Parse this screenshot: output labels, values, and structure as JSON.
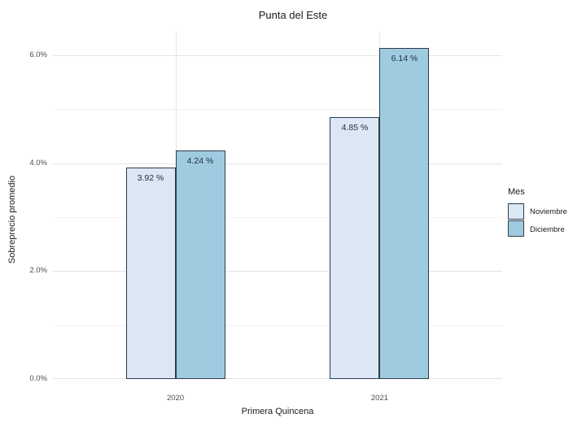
{
  "chart_data": {
    "type": "bar",
    "title": "Punta del Este",
    "xlabel": "Primera Quincena",
    "ylabel": "Sobreprecio promedio",
    "categories": [
      "2020",
      "2021"
    ],
    "series": [
      {
        "name": "Noviembre",
        "color": "#dbe7f4",
        "values": [
          3.92,
          4.85
        ],
        "labels": [
          "3.92 %",
          "4.85 %"
        ]
      },
      {
        "name": "Diciembre",
        "color": "#9fcbe1",
        "values": [
          4.24,
          6.14
        ],
        "labels": [
          "4.24 %",
          "6.14 %"
        ]
      }
    ],
    "bar_border_color": "#2e3d4a",
    "ylim": [
      0,
      6.45
    ],
    "y_ticks": [
      {
        "value": 0,
        "label": "0.0%"
      },
      {
        "value": 2,
        "label": "2.0%"
      },
      {
        "value": 4,
        "label": "4.0%"
      },
      {
        "value": 6,
        "label": "6.0%"
      }
    ],
    "y_minor_ticks": [
      1,
      3,
      5
    ],
    "grid": {
      "on": true,
      "major_color": "#e4e4e4",
      "minor_color": "#f1f1f1"
    },
    "legend": {
      "title": "Mes",
      "position": "right"
    }
  }
}
